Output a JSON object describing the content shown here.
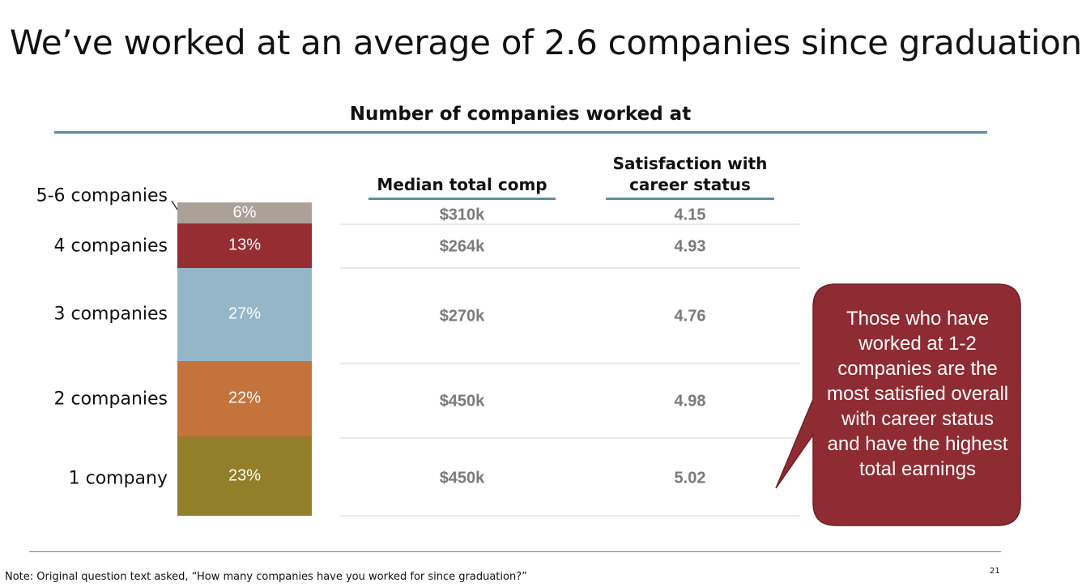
{
  "slide": {
    "title": "We’ve worked at an average of 2.6 companies since graduation",
    "note": "Note: Original question text asked, “How many companies have you worked for since graduation?”",
    "page_number": "21",
    "callout": "Those who have worked at 1-2 companies are the most satisfied overall with career status and have the highest total earnings"
  },
  "colors": {
    "accent_rule": "#5b8ea6",
    "callout_fill": "#8f2b32",
    "value_text": "#7a7a7a"
  },
  "chart_data": {
    "type": "bar",
    "subtype": "100% stacked single column with companion table",
    "title": "Number of companies worked at",
    "categories": [
      "5-6 companies",
      "4 companies",
      "3 companies",
      "2 companies",
      "1 company"
    ],
    "values": [
      6,
      13,
      27,
      22,
      23
    ],
    "value_labels": [
      "6%",
      "13%",
      "27%",
      "22%",
      "23%"
    ],
    "segment_colors": [
      "#aca196",
      "#952d33",
      "#95b6c7",
      "#c5733c",
      "#937e29"
    ],
    "table": {
      "columns": [
        "Median total comp",
        "Satisfaction with career status"
      ],
      "rows": [
        [
          "$310k",
          "4.15"
        ],
        [
          "$264k",
          "4.93"
        ],
        [
          "$270k",
          "4.76"
        ],
        [
          "$450k",
          "4.98"
        ],
        [
          "$450k",
          "5.02"
        ]
      ]
    }
  }
}
